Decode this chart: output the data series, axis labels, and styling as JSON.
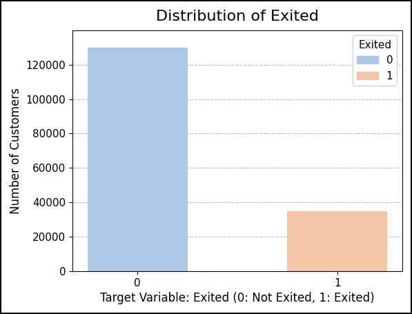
{
  "title": "Distribution of Exited",
  "xlabel": "Target Variable: Exited (0: Not Exited, 1: Exited)",
  "ylabel": "Number of Customers",
  "categories": [
    0,
    1
  ],
  "values": [
    130000,
    35000
  ],
  "colors": [
    "#aec6e8",
    "#f5c4a8"
  ],
  "legend_title": "Exited",
  "legend_labels": [
    "0",
    "1"
  ],
  "ylim": [
    0,
    140000
  ],
  "yticks": [
    0,
    20000,
    40000,
    60000,
    80000,
    100000,
    120000
  ],
  "bar_width": 0.5,
  "title_fontsize": 16,
  "axis_fontsize": 12,
  "tick_fontsize": 11,
  "legend_fontsize": 11,
  "fig_facecolor": "#ffffff",
  "outer_border": true
}
